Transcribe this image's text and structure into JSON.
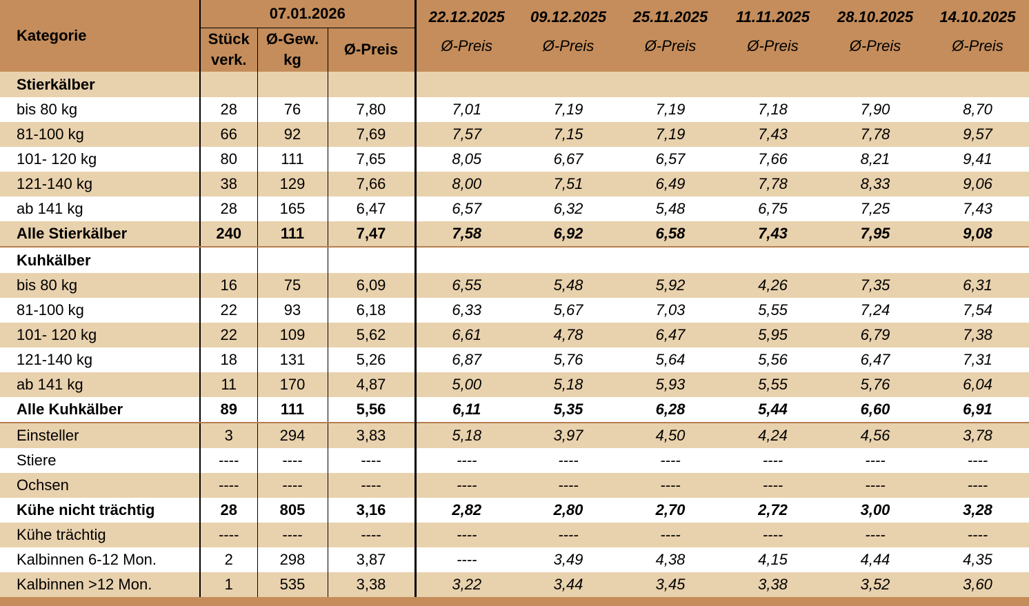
{
  "header": {
    "category": "Kategorie",
    "current_date": "07.01.2026",
    "current_columns": [
      "Stück\nverk.",
      "Ø-Gew.\nkg",
      "Ø-Preis"
    ],
    "history": [
      {
        "date": "22.12.2025",
        "label": "Ø-Preis"
      },
      {
        "date": "09.12.2025",
        "label": "Ø-Preis"
      },
      {
        "date": "25.11.2025",
        "label": "Ø-Preis"
      },
      {
        "date": "11.11.2025",
        "label": "Ø-Preis"
      },
      {
        "date": "28.10.2025",
        "label": "Ø-Preis"
      },
      {
        "date": "14.10.2025",
        "label": "Ø-Preis"
      }
    ]
  },
  "rows": [
    {
      "label": "Stierkälber",
      "style": "section",
      "cells": []
    },
    {
      "label": "bis 80 kg",
      "style": "normal",
      "cells": [
        "28",
        "76",
        "7,80",
        "7,01",
        "7,19",
        "7,19",
        "7,18",
        "7,90",
        "8,70"
      ]
    },
    {
      "label": "81-100 kg",
      "style": "normal",
      "cells": [
        "66",
        "92",
        "7,69",
        "7,57",
        "7,15",
        "7,19",
        "7,43",
        "7,78",
        "9,57"
      ]
    },
    {
      "label": "101- 120 kg",
      "style": "normal",
      "cells": [
        "80",
        "111",
        "7,65",
        "8,05",
        "6,67",
        "6,57",
        "7,66",
        "8,21",
        "9,41"
      ]
    },
    {
      "label": "121-140 kg",
      "style": "normal",
      "cells": [
        "38",
        "129",
        "7,66",
        "8,00",
        "7,51",
        "6,49",
        "7,78",
        "8,33",
        "9,06"
      ]
    },
    {
      "label": "ab 141 kg",
      "style": "normal",
      "cells": [
        "28",
        "165",
        "6,47",
        "6,57",
        "6,32",
        "5,48",
        "6,75",
        "7,25",
        "7,43"
      ]
    },
    {
      "label": "Alle Stierkälber",
      "style": "total",
      "cells": [
        "240",
        "111",
        "7,47",
        "7,58",
        "6,92",
        "6,58",
        "7,43",
        "7,95",
        "9,08"
      ]
    },
    {
      "label": "Kuhkälber",
      "style": "section",
      "cells": []
    },
    {
      "label": "bis 80 kg",
      "style": "normal",
      "cells": [
        "16",
        "75",
        "6,09",
        "6,55",
        "5,48",
        "5,92",
        "4,26",
        "7,35",
        "6,31"
      ]
    },
    {
      "label": "81-100 kg",
      "style": "normal",
      "cells": [
        "22",
        "93",
        "6,18",
        "6,33",
        "5,67",
        "7,03",
        "5,55",
        "7,24",
        "7,54"
      ]
    },
    {
      "label": "101- 120 kg",
      "style": "normal",
      "cells": [
        "22",
        "109",
        "5,62",
        "6,61",
        "4,78",
        "6,47",
        "5,95",
        "6,79",
        "7,38"
      ]
    },
    {
      "label": "121-140 kg",
      "style": "normal",
      "cells": [
        "18",
        "131",
        "5,26",
        "6,87",
        "5,76",
        "5,64",
        "5,56",
        "6,47",
        "7,31"
      ]
    },
    {
      "label": "ab 141 kg",
      "style": "normal",
      "cells": [
        "11",
        "170",
        "4,87",
        "5,00",
        "5,18",
        "5,93",
        "5,55",
        "5,76",
        "6,04"
      ]
    },
    {
      "label": "Alle Kuhkälber",
      "style": "total",
      "cells": [
        "89",
        "111",
        "5,56",
        "6,11",
        "5,35",
        "6,28",
        "5,44",
        "6,60",
        "6,91"
      ]
    },
    {
      "label": "Einsteller",
      "style": "normal",
      "cells": [
        "3",
        "294",
        "3,83",
        "5,18",
        "3,97",
        "4,50",
        "4,24",
        "4,56",
        "3,78"
      ]
    },
    {
      "label": "Stiere",
      "style": "normal",
      "cells": [
        "----",
        "----",
        "----",
        "----",
        "----",
        "----",
        "----",
        "----",
        "----"
      ]
    },
    {
      "label": "Ochsen",
      "style": "normal",
      "cells": [
        "----",
        "----",
        "----",
        "----",
        "----",
        "----",
        "----",
        "----",
        "----"
      ]
    },
    {
      "label": "Kühe nicht trächtig",
      "style": "bold",
      "cells": [
        "28",
        "805",
        "3,16",
        "2,82",
        "2,80",
        "2,70",
        "2,72",
        "3,00",
        "3,28"
      ]
    },
    {
      "label": "Kühe trächtig",
      "style": "normal",
      "cells": [
        "----",
        "----",
        "----",
        "----",
        "----",
        "----",
        "----",
        "----",
        "----"
      ]
    },
    {
      "label": "Kalbinnen 6-12 Mon.",
      "style": "normal",
      "cells": [
        "2",
        "298",
        "3,87",
        "----",
        "3,49",
        "4,38",
        "4,15",
        "4,44",
        "4,35"
      ]
    },
    {
      "label": "Kalbinnen >12 Mon.",
      "style": "normal",
      "cells": [
        "1",
        "535",
        "3,38",
        "3,22",
        "3,44",
        "3,45",
        "3,38",
        "3,52",
        "3,60"
      ]
    }
  ]
}
